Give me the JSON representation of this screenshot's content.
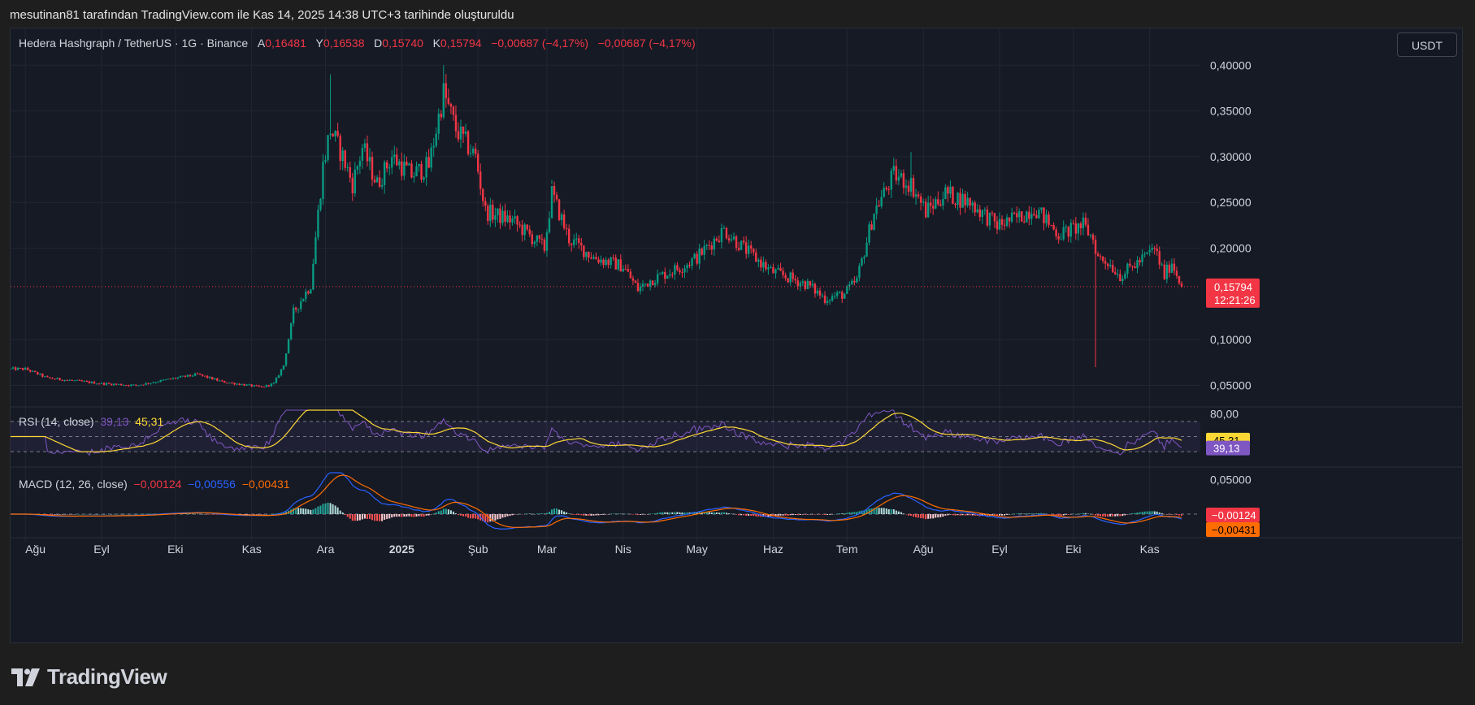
{
  "header": {
    "caption": "mesutinan81 tarafından TradingView.com ile Kas 14, 2025 14:38 UTC+3 tarihinde oluşturuldu"
  },
  "legend": {
    "symbol": "Hedera Hashgraph / TetherUS · 1G · Binance",
    "open_label": "A",
    "open_value": "0,16481",
    "high_label": "Y",
    "high_value": "0,16538",
    "low_label": "D",
    "low_value": "0,15740",
    "close_label": "K",
    "close_value": "0,15794",
    "change": "−0,00687 (−4,17%)",
    "change2": "−0,00687 (−4,17%)"
  },
  "currency_button": "USDT",
  "rsi_legend": {
    "title": "RSI (14, close)",
    "rsi_value": "39,13",
    "ma_value": "45,31"
  },
  "macd_legend": {
    "title": "MACD (12, 26, close)",
    "hist_value": "−0,00124",
    "macd_value": "−0,00556",
    "signal_value": "−0,00431"
  },
  "price_badge": {
    "price": "0,15794",
    "countdown": "12:21:26"
  },
  "brand": "TradingView",
  "colors": {
    "up": "#089981",
    "down": "#f23645",
    "rsi": "#7e57c2",
    "rsi_ma": "#fdd835",
    "macd": "#2962ff",
    "signal": "#ff6d00"
  },
  "chart_data": [
    {
      "type": "candlestick",
      "pane": "price",
      "x_axis_ticks": [
        "Ağu",
        "Eyl",
        "Eki",
        "Kas",
        "Ara",
        "2025",
        "Şub",
        "Mar",
        "Nis",
        "May",
        "Haz",
        "Tem",
        "Ağu",
        "Eyl",
        "Eki",
        "Kas"
      ],
      "y_axis_ticks": [
        "0,40000",
        "0,35000",
        "0,30000",
        "0,25000",
        "0,20000",
        "0,10000",
        "0,05000"
      ],
      "ylim": [
        0.03,
        0.41
      ],
      "last_price": 0.15794,
      "close_path": [
        [
          "2024-08-01",
          0.068
        ],
        [
          "2024-08-10",
          0.058
        ],
        [
          "2024-09-01",
          0.052
        ],
        [
          "2024-09-15",
          0.05
        ],
        [
          "2024-10-01",
          0.058
        ],
        [
          "2024-10-10",
          0.062
        ],
        [
          "2024-10-20",
          0.054
        ],
        [
          "2024-11-05",
          0.048
        ],
        [
          "2024-11-10",
          0.052
        ],
        [
          "2024-11-14",
          0.072
        ],
        [
          "2024-11-18",
          0.13
        ],
        [
          "2024-11-25",
          0.16
        ],
        [
          "2024-11-30",
          0.29
        ],
        [
          "2024-12-03",
          0.33
        ],
        [
          "2024-12-08",
          0.3
        ],
        [
          "2024-12-12",
          0.27
        ],
        [
          "2024-12-16",
          0.31
        ],
        [
          "2024-12-22",
          0.27
        ],
        [
          "2024-12-28",
          0.3
        ],
        [
          "2025-01-05",
          0.28
        ],
        [
          "2025-01-12",
          0.29
        ],
        [
          "2025-01-18",
          0.37
        ],
        [
          "2025-01-23",
          0.33
        ],
        [
          "2025-01-31",
          0.3
        ],
        [
          "2025-02-04",
          0.24
        ],
        [
          "2025-02-15",
          0.23
        ],
        [
          "2025-02-28",
          0.2
        ],
        [
          "2025-03-03",
          0.26
        ],
        [
          "2025-03-10",
          0.21
        ],
        [
          "2025-03-20",
          0.19
        ],
        [
          "2025-04-01",
          0.18
        ],
        [
          "2025-04-07",
          0.155
        ],
        [
          "2025-04-12",
          0.165
        ],
        [
          "2025-04-25",
          0.18
        ],
        [
          "2025-05-01",
          0.19
        ],
        [
          "2025-05-12",
          0.22
        ],
        [
          "2025-05-20",
          0.2
        ],
        [
          "2025-05-31",
          0.175
        ],
        [
          "2025-06-05",
          0.17
        ],
        [
          "2025-06-15",
          0.16
        ],
        [
          "2025-06-22",
          0.145
        ],
        [
          "2025-06-30",
          0.15
        ],
        [
          "2025-07-05",
          0.165
        ],
        [
          "2025-07-12",
          0.24
        ],
        [
          "2025-07-20",
          0.28
        ],
        [
          "2025-07-27",
          0.27
        ],
        [
          "2025-08-02",
          0.24
        ],
        [
          "2025-08-10",
          0.26
        ],
        [
          "2025-08-20",
          0.25
        ],
        [
          "2025-08-31",
          0.225
        ],
        [
          "2025-09-10",
          0.235
        ],
        [
          "2025-09-15",
          0.245
        ],
        [
          "2025-09-25",
          0.215
        ],
        [
          "2025-10-05",
          0.225
        ],
        [
          "2025-10-09",
          0.21
        ],
        [
          "2025-10-11",
          0.19
        ],
        [
          "2025-10-15",
          0.185
        ],
        [
          "2025-10-20",
          0.17
        ],
        [
          "2025-10-30",
          0.19
        ],
        [
          "2025-11-03",
          0.2
        ],
        [
          "2025-11-07",
          0.17
        ],
        [
          "2025-11-10",
          0.185
        ],
        [
          "2025-11-14",
          0.158
        ]
      ],
      "notable_wicks": [
        [
          "2024-12-03",
          0.39
        ],
        [
          "2025-01-18",
          0.4
        ],
        [
          "2025-03-03",
          0.27
        ],
        [
          "2025-07-27",
          0.305
        ],
        [
          "2025-10-10",
          0.07
        ]
      ]
    },
    {
      "type": "line",
      "pane": "RSI",
      "y_axis_ticks": [
        "80,00"
      ],
      "band_levels": [
        70,
        50,
        30
      ],
      "series": [
        {
          "name": "RSI",
          "last": 39.13
        },
        {
          "name": "MA",
          "last": 45.31
        }
      ]
    },
    {
      "type": "line",
      "pane": "MACD",
      "y_axis_ticks": [
        "0,05000"
      ],
      "series": [
        {
          "name": "MACD",
          "last": -0.00556
        },
        {
          "name": "Signal",
          "last": -0.00431
        },
        {
          "name": "Histogram",
          "last": -0.00124
        }
      ]
    }
  ]
}
